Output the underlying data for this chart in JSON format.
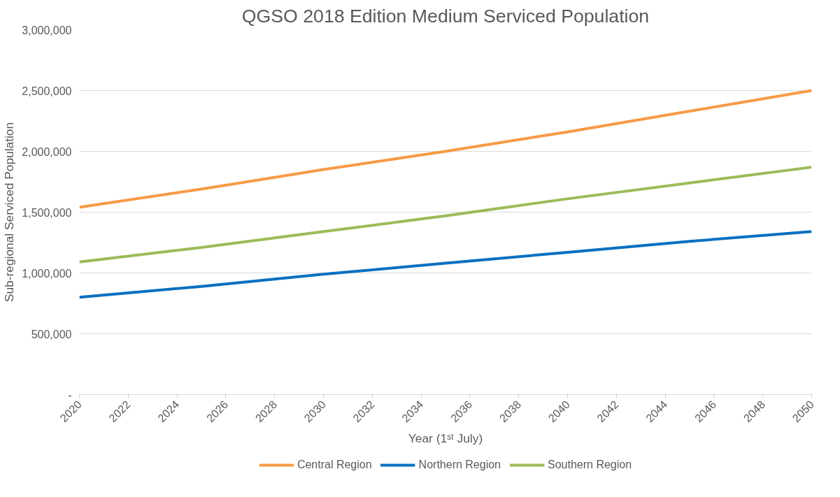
{
  "chart_data": {
    "type": "line",
    "title": "QGSO 2018 Edition Medium Serviced Population",
    "xlabel": "Year (1ˢᵗ July)",
    "ylabel": "Sub-regional Serviced Population",
    "x": [
      2020,
      2025,
      2030,
      2035,
      2040,
      2045,
      2050
    ],
    "series": [
      {
        "name": "Central Region",
        "color": "#f79a46",
        "values": [
          1540000,
          1690000,
          1850000,
          2000000,
          2160000,
          2330000,
          2500000
        ]
      },
      {
        "name": "Northern Region",
        "color": "#0a70c0",
        "values": [
          800000,
          890000,
          990000,
          1080000,
          1170000,
          1260000,
          1340000
        ]
      },
      {
        "name": "Southern Region",
        "color": "#9bbb59",
        "values": [
          1090000,
          1210000,
          1340000,
          1470000,
          1610000,
          1740000,
          1870000
        ]
      }
    ],
    "xlim": [
      2020,
      2050
    ],
    "xticks": [
      2020,
      2022,
      2024,
      2026,
      2028,
      2030,
      2032,
      2034,
      2036,
      2038,
      2040,
      2042,
      2044,
      2046,
      2048,
      2050
    ],
    "ylim": [
      0,
      3000000
    ],
    "yticks": [
      {
        "value": 0,
        "label": "-"
      },
      {
        "value": 500000,
        "label": "500,000"
      },
      {
        "value": 1000000,
        "label": "1,000,000"
      },
      {
        "value": 1500000,
        "label": "1,500,000"
      },
      {
        "value": 2000000,
        "label": "2,000,000"
      },
      {
        "value": 2500000,
        "label": "2,500,000"
      },
      {
        "value": 3000000,
        "label": "3,000,000"
      }
    ],
    "grid": "y",
    "legend": "bottom",
    "marker": "none",
    "line_style": "solid"
  }
}
